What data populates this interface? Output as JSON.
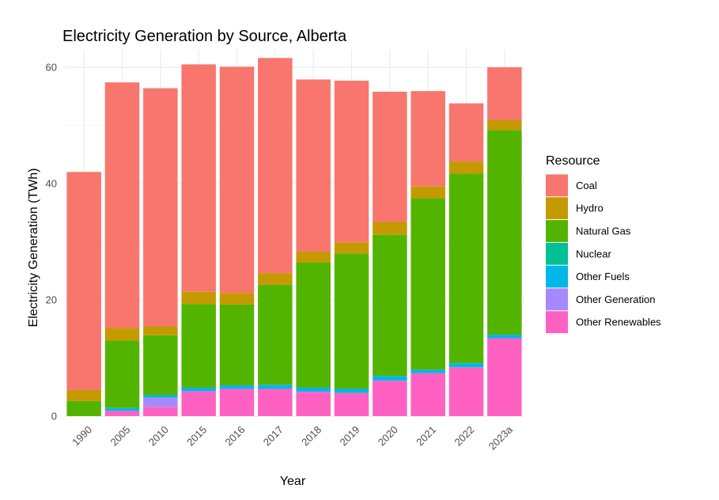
{
  "chart_data": {
    "type": "bar",
    "stacked": true,
    "title": "Electricity Generation by Source, Alberta",
    "xlabel": "Year",
    "ylabel": "Electricity Generation (TWh)",
    "ylim": [
      0,
      63
    ],
    "yticks": [
      0,
      20,
      40,
      60
    ],
    "grid": true,
    "legend_position": "right",
    "legend_title": "Resource",
    "legend_order": [
      "Coal",
      "Hydro",
      "Natural Gas",
      "Nuclear",
      "Other Fuels",
      "Other Generation",
      "Other Renewables"
    ],
    "categories": [
      "1990",
      "2005",
      "2010",
      "2015",
      "2016",
      "2017",
      "2018",
      "2019",
      "2020",
      "2021",
      "2022",
      "2023a"
    ],
    "series": [
      {
        "name": "Other Renewables",
        "color": "#FF61C3",
        "values": [
          0,
          0.9,
          1.6,
          4.3,
          4.7,
          4.7,
          4.2,
          4.0,
          6.1,
          7.4,
          8.4,
          13.4
        ]
      },
      {
        "name": "Other Generation",
        "color": "#A58AFF",
        "values": [
          0,
          0,
          1.6,
          0,
          0,
          0,
          0,
          0,
          0,
          0,
          0,
          0
        ]
      },
      {
        "name": "Other Fuels",
        "color": "#00B6EB",
        "values": [
          0,
          0.5,
          0.4,
          0.6,
          0.6,
          0.7,
          0.7,
          0.7,
          0.8,
          0.6,
          0.7,
          0.6
        ]
      },
      {
        "name": "Nuclear",
        "color": "#00C094",
        "values": [
          0,
          0,
          0,
          0,
          0,
          0,
          0,
          0,
          0,
          0,
          0,
          0
        ]
      },
      {
        "name": "Natural Gas",
        "color": "#53B400",
        "values": [
          2.6,
          11.6,
          10.3,
          14.4,
          13.9,
          17.2,
          21.5,
          23.3,
          24.3,
          29.5,
          32.6,
          35.2
        ]
      },
      {
        "name": "Hydro",
        "color": "#C49A00",
        "values": [
          1.9,
          2.2,
          1.6,
          2.1,
          2.0,
          2.0,
          1.9,
          1.9,
          2.2,
          2.0,
          2.1,
          1.7
        ]
      },
      {
        "name": "Coal",
        "color": "#F8766D",
        "values": [
          37.5,
          42.2,
          40.9,
          39.1,
          38.9,
          37.0,
          29.6,
          27.8,
          22.4,
          16.4,
          10.0,
          9.1
        ]
      }
    ]
  }
}
